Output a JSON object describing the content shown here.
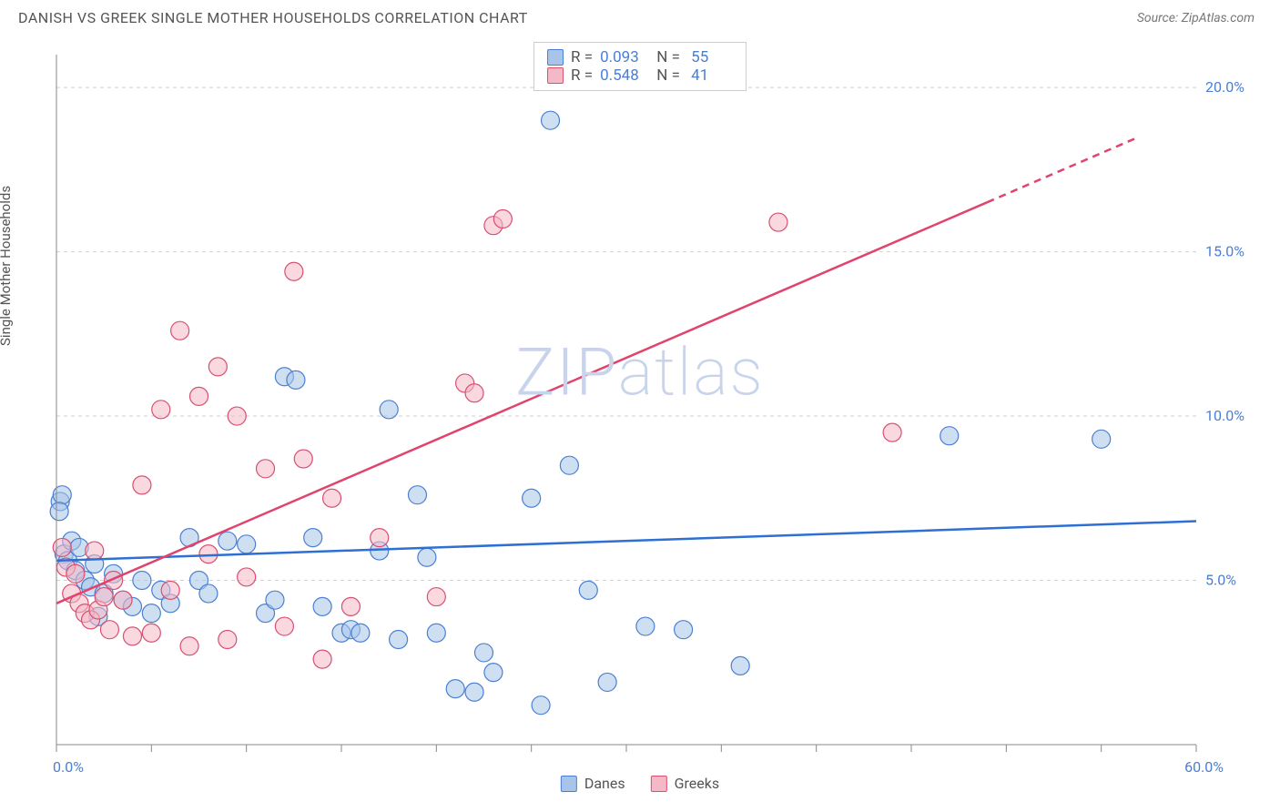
{
  "header": {
    "title": "DANISH VS GREEK SINGLE MOTHER HOUSEHOLDS CORRELATION CHART",
    "source_prefix": "Source: ",
    "source_name": "ZipAtlas.com"
  },
  "chart": {
    "type": "scatter",
    "ylabel": "Single Mother Households",
    "watermark": "ZIPatlas",
    "background_color": "#ffffff",
    "grid_color": "#d0d0d0",
    "axis_color": "#888888",
    "tick_label_color": "#4a7fd4",
    "xlim": [
      0,
      60
    ],
    "ylim": [
      0,
      21
    ],
    "x_tick_positions": [
      0,
      5,
      10,
      15,
      20,
      25,
      30,
      35,
      40,
      45,
      50,
      55,
      60
    ],
    "x_tick_labels": {
      "0": "0.0%",
      "60": "60.0%"
    },
    "y_gridlines": [
      5,
      10,
      15,
      20
    ],
    "y_tick_labels": {
      "5": "5.0%",
      "10": "10.0%",
      "15": "15.0%",
      "20": "20.0%"
    },
    "marker_radius": 10,
    "marker_stroke_width": 1.2,
    "trend_line_width": 2.5,
    "series": [
      {
        "name": "Danes",
        "fill": "#a8c4e8",
        "stroke": "#4a7fd4",
        "trend_color": "#2e6fd4",
        "fill_opacity": 0.55,
        "R": "0.093",
        "N": "55",
        "trend": {
          "x1": 0,
          "y1": 5.6,
          "x2": 60,
          "y2": 6.8,
          "dash_after_x": null
        },
        "points": [
          [
            0.2,
            7.4
          ],
          [
            0.3,
            7.6
          ],
          [
            0.4,
            5.8
          ],
          [
            0.6,
            5.6
          ],
          [
            0.8,
            6.2
          ],
          [
            1.0,
            5.3
          ],
          [
            1.2,
            6.0
          ],
          [
            1.5,
            5.0
          ],
          [
            1.8,
            4.8
          ],
          [
            2.0,
            5.5
          ],
          [
            2.2,
            3.9
          ],
          [
            2.5,
            4.6
          ],
          [
            3.0,
            5.2
          ],
          [
            3.5,
            4.4
          ],
          [
            4.0,
            4.2
          ],
          [
            4.5,
            5.0
          ],
          [
            5.0,
            4.0
          ],
          [
            5.5,
            4.7
          ],
          [
            6.0,
            4.3
          ],
          [
            7.0,
            6.3
          ],
          [
            7.5,
            5.0
          ],
          [
            8.0,
            4.6
          ],
          [
            9.0,
            6.2
          ],
          [
            10.0,
            6.1
          ],
          [
            11.0,
            4.0
          ],
          [
            11.5,
            4.4
          ],
          [
            12.0,
            11.2
          ],
          [
            12.6,
            11.1
          ],
          [
            13.5,
            6.3
          ],
          [
            14.0,
            4.2
          ],
          [
            15.0,
            3.4
          ],
          [
            15.5,
            3.5
          ],
          [
            16.0,
            3.4
          ],
          [
            17.0,
            5.9
          ],
          [
            17.5,
            10.2
          ],
          [
            18.0,
            3.2
          ],
          [
            19.0,
            7.6
          ],
          [
            19.5,
            5.7
          ],
          [
            20.0,
            3.4
          ],
          [
            21.0,
            1.7
          ],
          [
            22.0,
            1.6
          ],
          [
            22.5,
            2.8
          ],
          [
            23.0,
            2.2
          ],
          [
            25.0,
            7.5
          ],
          [
            25.5,
            1.2
          ],
          [
            26.0,
            19.0
          ],
          [
            27.0,
            8.5
          ],
          [
            28.0,
            4.7
          ],
          [
            29.0,
            1.9
          ],
          [
            31.0,
            3.6
          ],
          [
            33.0,
            3.5
          ],
          [
            36.0,
            2.4
          ],
          [
            47.0,
            9.4
          ],
          [
            55.0,
            9.3
          ],
          [
            0.15,
            7.1
          ]
        ]
      },
      {
        "name": "Greeks",
        "fill": "#f4b8c6",
        "stroke": "#d94f70",
        "trend_color": "#e0446c",
        "fill_opacity": 0.55,
        "R": "0.548",
        "N": "41",
        "trend": {
          "x1": 0,
          "y1": 4.3,
          "x2": 57,
          "y2": 18.5,
          "dash_after_x": 49
        },
        "points": [
          [
            0.3,
            6.0
          ],
          [
            0.5,
            5.4
          ],
          [
            0.8,
            4.6
          ],
          [
            1.0,
            5.2
          ],
          [
            1.2,
            4.3
          ],
          [
            1.5,
            4.0
          ],
          [
            1.8,
            3.8
          ],
          [
            2.0,
            5.9
          ],
          [
            2.2,
            4.1
          ],
          [
            2.5,
            4.5
          ],
          [
            2.8,
            3.5
          ],
          [
            3.0,
            5.0
          ],
          [
            3.5,
            4.4
          ],
          [
            4.0,
            3.3
          ],
          [
            4.5,
            7.9
          ],
          [
            5.0,
            3.4
          ],
          [
            5.5,
            10.2
          ],
          [
            6.0,
            4.7
          ],
          [
            6.5,
            12.6
          ],
          [
            7.0,
            3.0
          ],
          [
            7.5,
            10.6
          ],
          [
            8.0,
            5.8
          ],
          [
            8.5,
            11.5
          ],
          [
            9.0,
            3.2
          ],
          [
            9.5,
            10.0
          ],
          [
            10.0,
            5.1
          ],
          [
            11.0,
            8.4
          ],
          [
            12.0,
            3.6
          ],
          [
            12.5,
            14.4
          ],
          [
            13.0,
            8.7
          ],
          [
            14.0,
            2.6
          ],
          [
            14.5,
            7.5
          ],
          [
            15.5,
            4.2
          ],
          [
            17.0,
            6.3
          ],
          [
            20.0,
            4.5
          ],
          [
            21.5,
            11.0
          ],
          [
            22.0,
            10.7
          ],
          [
            23.0,
            15.8
          ],
          [
            23.5,
            16.0
          ],
          [
            38.0,
            15.9
          ],
          [
            44.0,
            9.5
          ]
        ]
      }
    ],
    "bottom_legend": [
      {
        "label": "Danes",
        "fill": "#a8c4e8",
        "stroke": "#4a7fd4"
      },
      {
        "label": "Greeks",
        "fill": "#f4b8c6",
        "stroke": "#d94f70"
      }
    ]
  }
}
